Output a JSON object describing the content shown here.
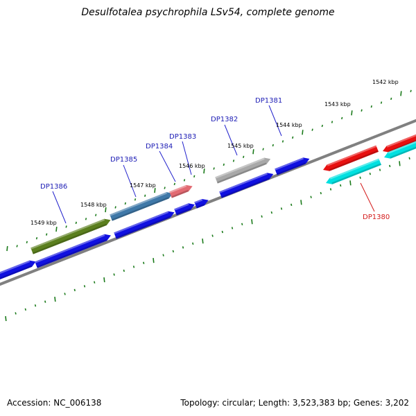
{
  "title": "Desulfotalea psychrophila LSv54, complete genome",
  "footer": {
    "accession": "Accession: NC_006138",
    "summary": "Topology: circular; Length: 3,523,383 bp; Genes: 3,202"
  },
  "colors": {
    "backbone": "#808080",
    "tick": "#1a7a1a",
    "cds_forward": "#1010e0",
    "gene_label_forward": "#1a1ab4",
    "gene_label_reverse": "#d41a1a",
    "leader_forward": "#2222cc",
    "leader_reverse": "#d41a1a"
  },
  "ticks": [
    {
      "label": "1549 kbp"
    },
    {
      "label": "1548 kbp"
    },
    {
      "label": "1547 kbp"
    },
    {
      "label": "1546 kbp"
    },
    {
      "label": "1545 kbp"
    },
    {
      "label": "1544 kbp"
    },
    {
      "label": "1543 kbp"
    },
    {
      "label": "1542 kbp"
    }
  ],
  "genes": [
    {
      "name": "DP1386",
      "strand": "forward",
      "color": "#5b7f1e"
    },
    {
      "name": "DP1385",
      "strand": "forward",
      "color": "#3f78a8"
    },
    {
      "name": "DP1384",
      "strand": "forward",
      "color": "#e26a72"
    },
    {
      "name": "DP1383",
      "strand": "forward",
      "color": "#e26a72"
    },
    {
      "name": "DP1382",
      "strand": "forward",
      "color": "#a8a8a8"
    },
    {
      "name": "DP1381",
      "strand": "forward",
      "color": "#1010e0"
    },
    {
      "name": "DP1380",
      "strand": "reverse",
      "color": "#00e0e0"
    }
  ]
}
